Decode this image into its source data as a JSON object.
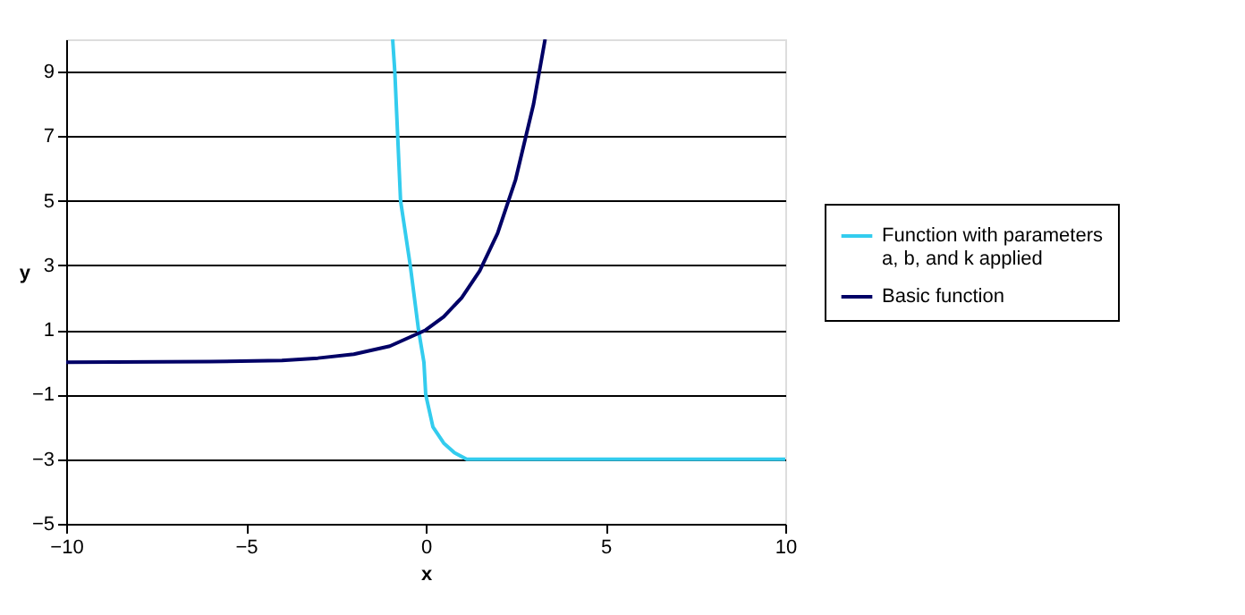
{
  "chart_data": {
    "type": "line",
    "xlabel": "x",
    "ylabel": "y",
    "xlim": [
      -10,
      10
    ],
    "ylim": [
      -5,
      10
    ],
    "xticks": [
      -10,
      -5,
      0,
      5,
      10
    ],
    "yticks": [
      -5,
      -3,
      -1,
      1,
      3,
      5,
      7,
      9
    ],
    "grid": "y",
    "legend": "right",
    "marker": "none",
    "line_style": "solid",
    "series": [
      {
        "name": "Function with parameters a, b, and k applied",
        "color": "#33ccee",
        "x": [
          -0.92,
          -0.86,
          -0.78,
          -0.7,
          -0.43,
          -0.2,
          -0.05,
          0,
          0.2,
          0.5,
          0.8,
          1.14,
          2,
          10
        ],
        "values": [
          10,
          9,
          7,
          5,
          3,
          1,
          0,
          -1,
          -2,
          -2.5,
          -2.8,
          -3,
          -3,
          -3
        ]
      },
      {
        "name": "Basic function",
        "color": "#000066",
        "x": [
          -10,
          -6,
          -4,
          -3,
          -2,
          -1,
          0,
          0.5,
          1,
          1.5,
          2,
          2.5,
          3,
          3.32
        ],
        "values": [
          0,
          0.02,
          0.06,
          0.13,
          0.25,
          0.5,
          1,
          1.41,
          2,
          2.83,
          4,
          5.66,
          8,
          10
        ]
      }
    ]
  }
}
